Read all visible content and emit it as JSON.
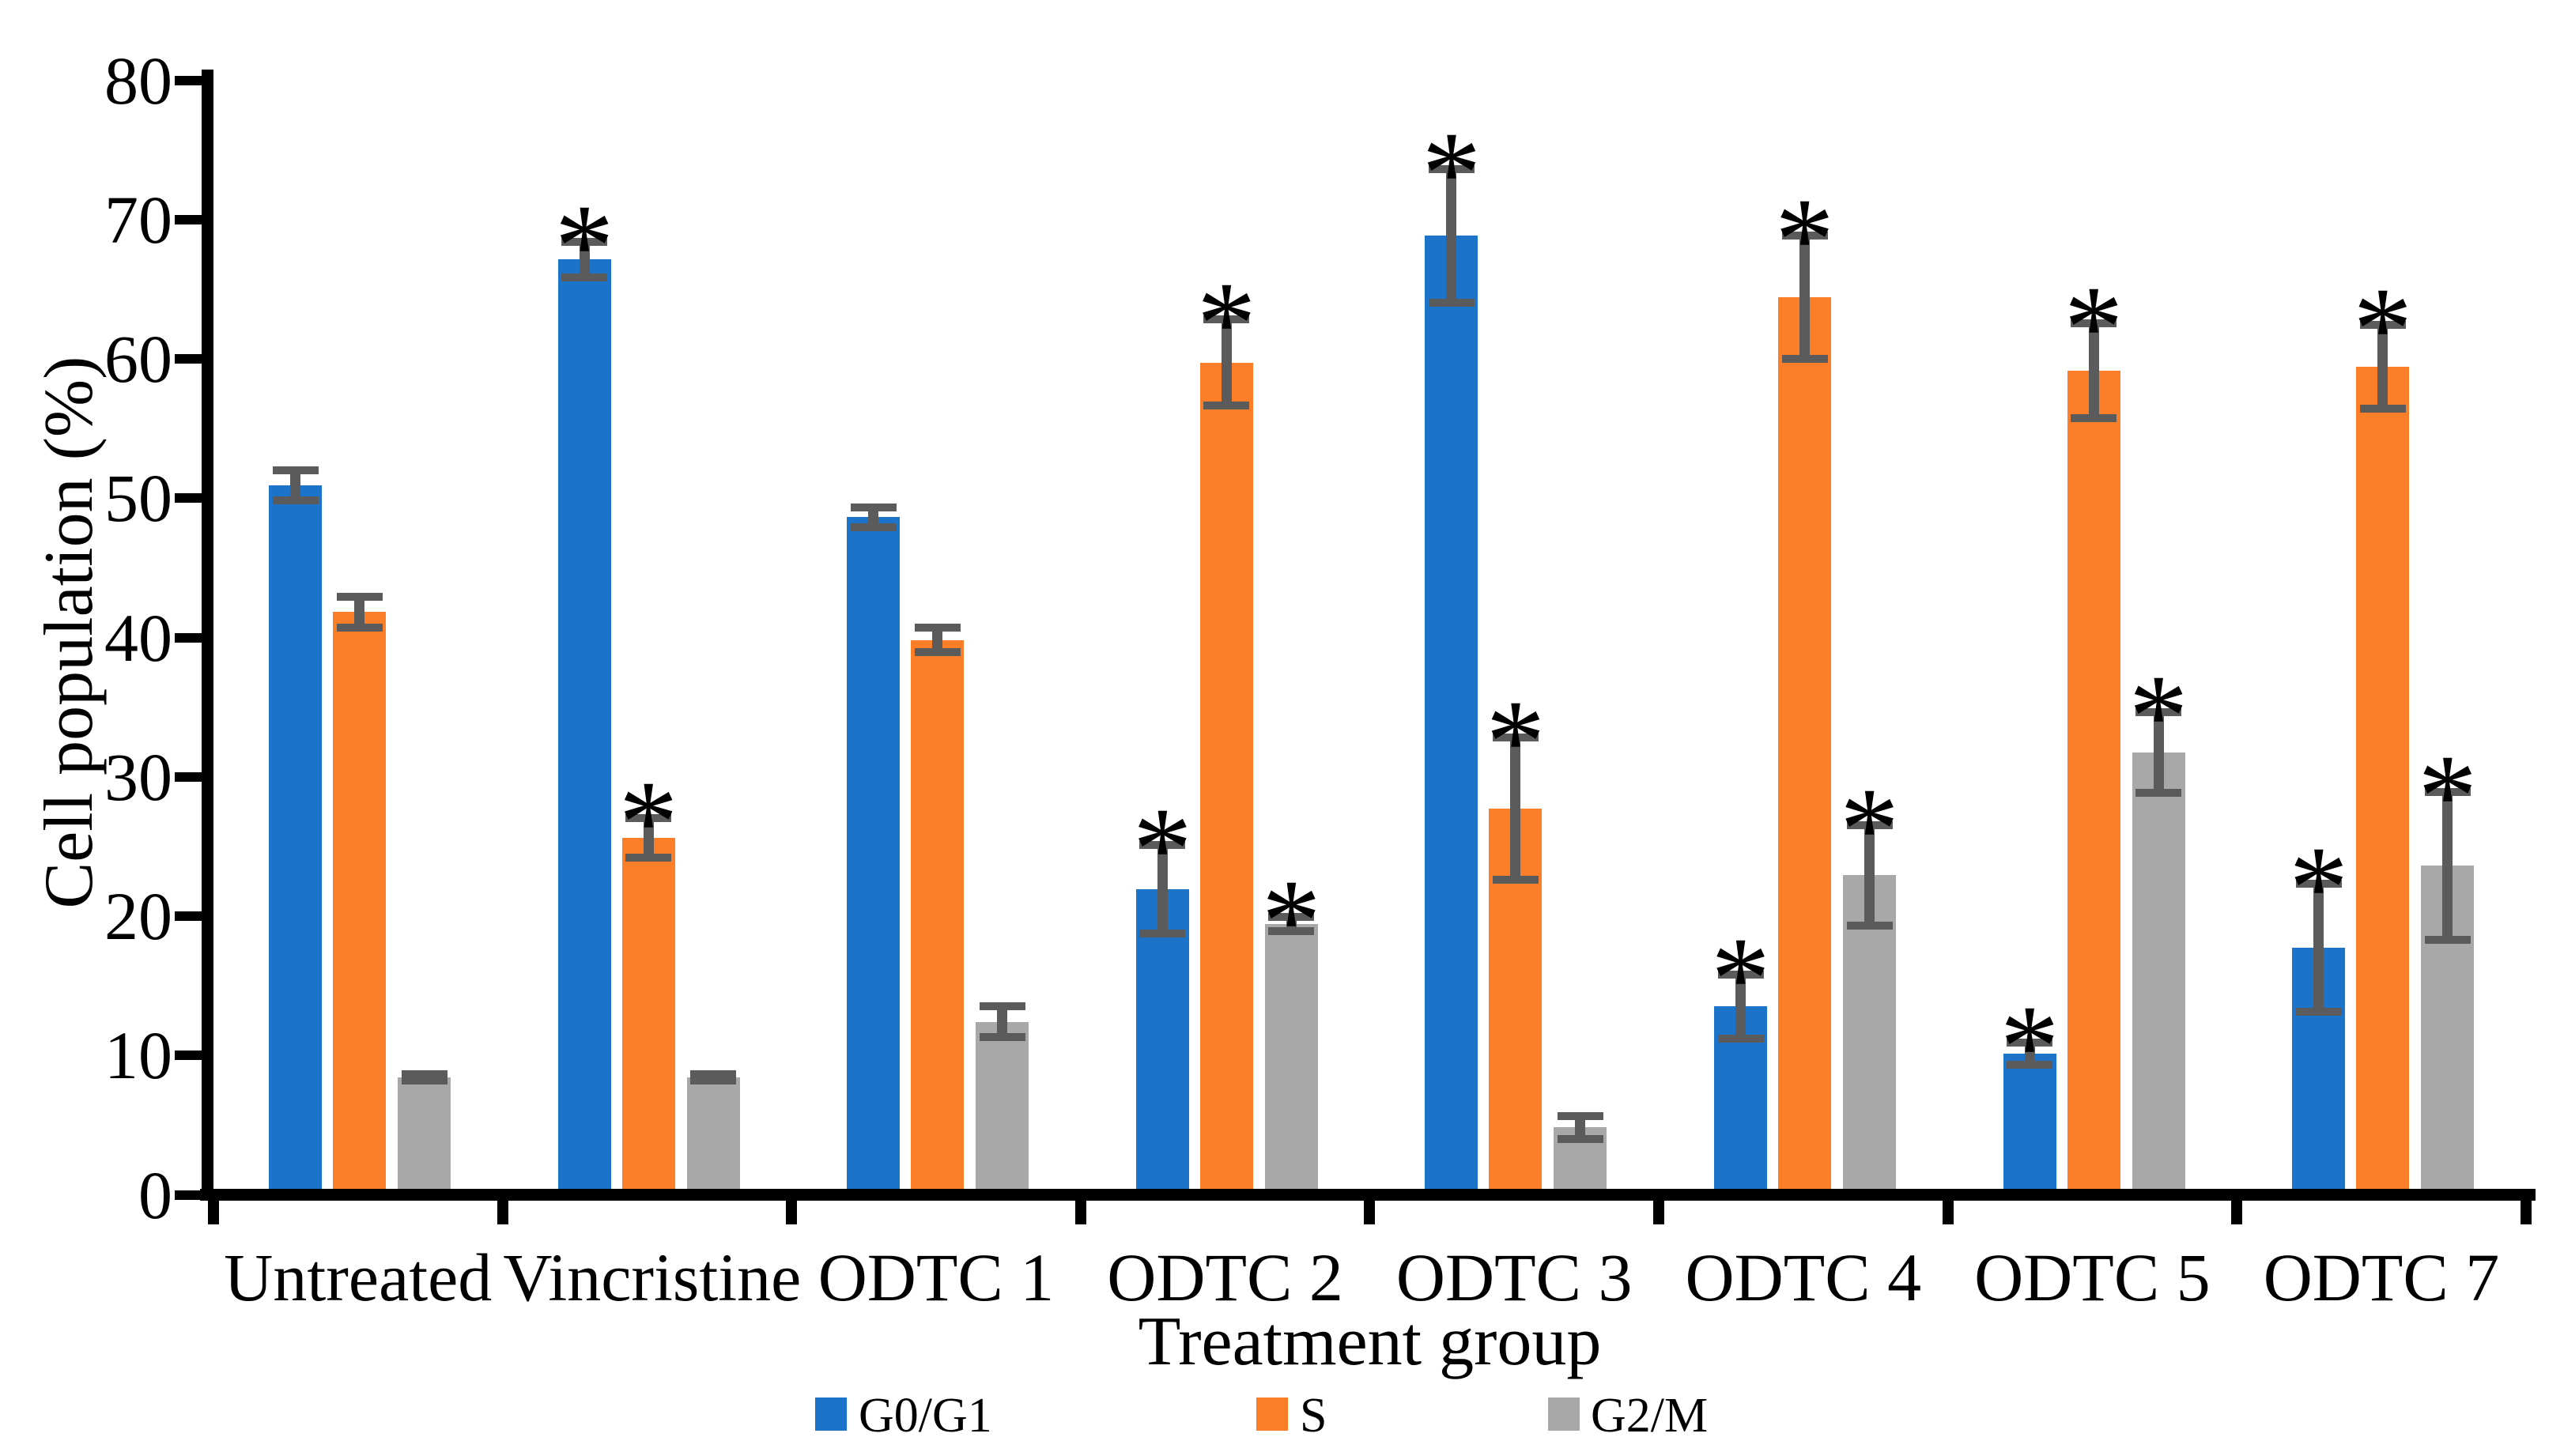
{
  "figure": {
    "background": "#ffffff",
    "y_axis_title": "Cell population (%)",
    "x_axis_title": "Treatment group",
    "significance_marker": "*",
    "axis_color": "#000000",
    "error_bar_color": "#5B5B5B"
  },
  "chart_data": {
    "type": "bar",
    "title": "",
    "xlabel": "Treatment group",
    "ylabel": "Cell population (%)",
    "ylim": [
      0,
      80
    ],
    "yticks": [
      0,
      10,
      20,
      30,
      40,
      50,
      60,
      70,
      80
    ],
    "grid": false,
    "legend_position": "bottom",
    "error_bars": true,
    "categories": [
      "Untreated",
      "Vincristine",
      "ODTC 1",
      "ODTC 2",
      "ODTC 3",
      "ODTC 4",
      "ODTC 5",
      "ODTC 7"
    ],
    "series": [
      {
        "name": "G0/G1",
        "color": "#1B74C9",
        "values": [
          50.5,
          66.7,
          48.2,
          21.5,
          68.4,
          13.1,
          9.7,
          17.3
        ],
        "errors": [
          1.1,
          1.3,
          0.7,
          3.2,
          4.8,
          2.3,
          0.8,
          4.6
        ],
        "significant": [
          false,
          true,
          false,
          true,
          true,
          true,
          true,
          true
        ]
      },
      {
        "name": "S",
        "color": "#FD7E28",
        "values": [
          41.4,
          25.2,
          39.4,
          59.3,
          27.3,
          64.0,
          58.7,
          59.0
        ],
        "errors": [
          1.1,
          1.4,
          0.9,
          3.1,
          5.1,
          4.4,
          3.4,
          3.0
        ],
        "significant": [
          false,
          true,
          false,
          true,
          true,
          true,
          true,
          true
        ]
      },
      {
        "name": "G2/M",
        "color": "#A8A8A8",
        "values": [
          8.0,
          8.0,
          12.0,
          19.0,
          4.4,
          22.5,
          31.3,
          23.2
        ],
        "errors": [
          0.2,
          0.2,
          1.1,
          0.5,
          0.8,
          3.6,
          2.9,
          5.3
        ],
        "significant": [
          false,
          false,
          false,
          true,
          false,
          true,
          true,
          true
        ]
      }
    ]
  }
}
